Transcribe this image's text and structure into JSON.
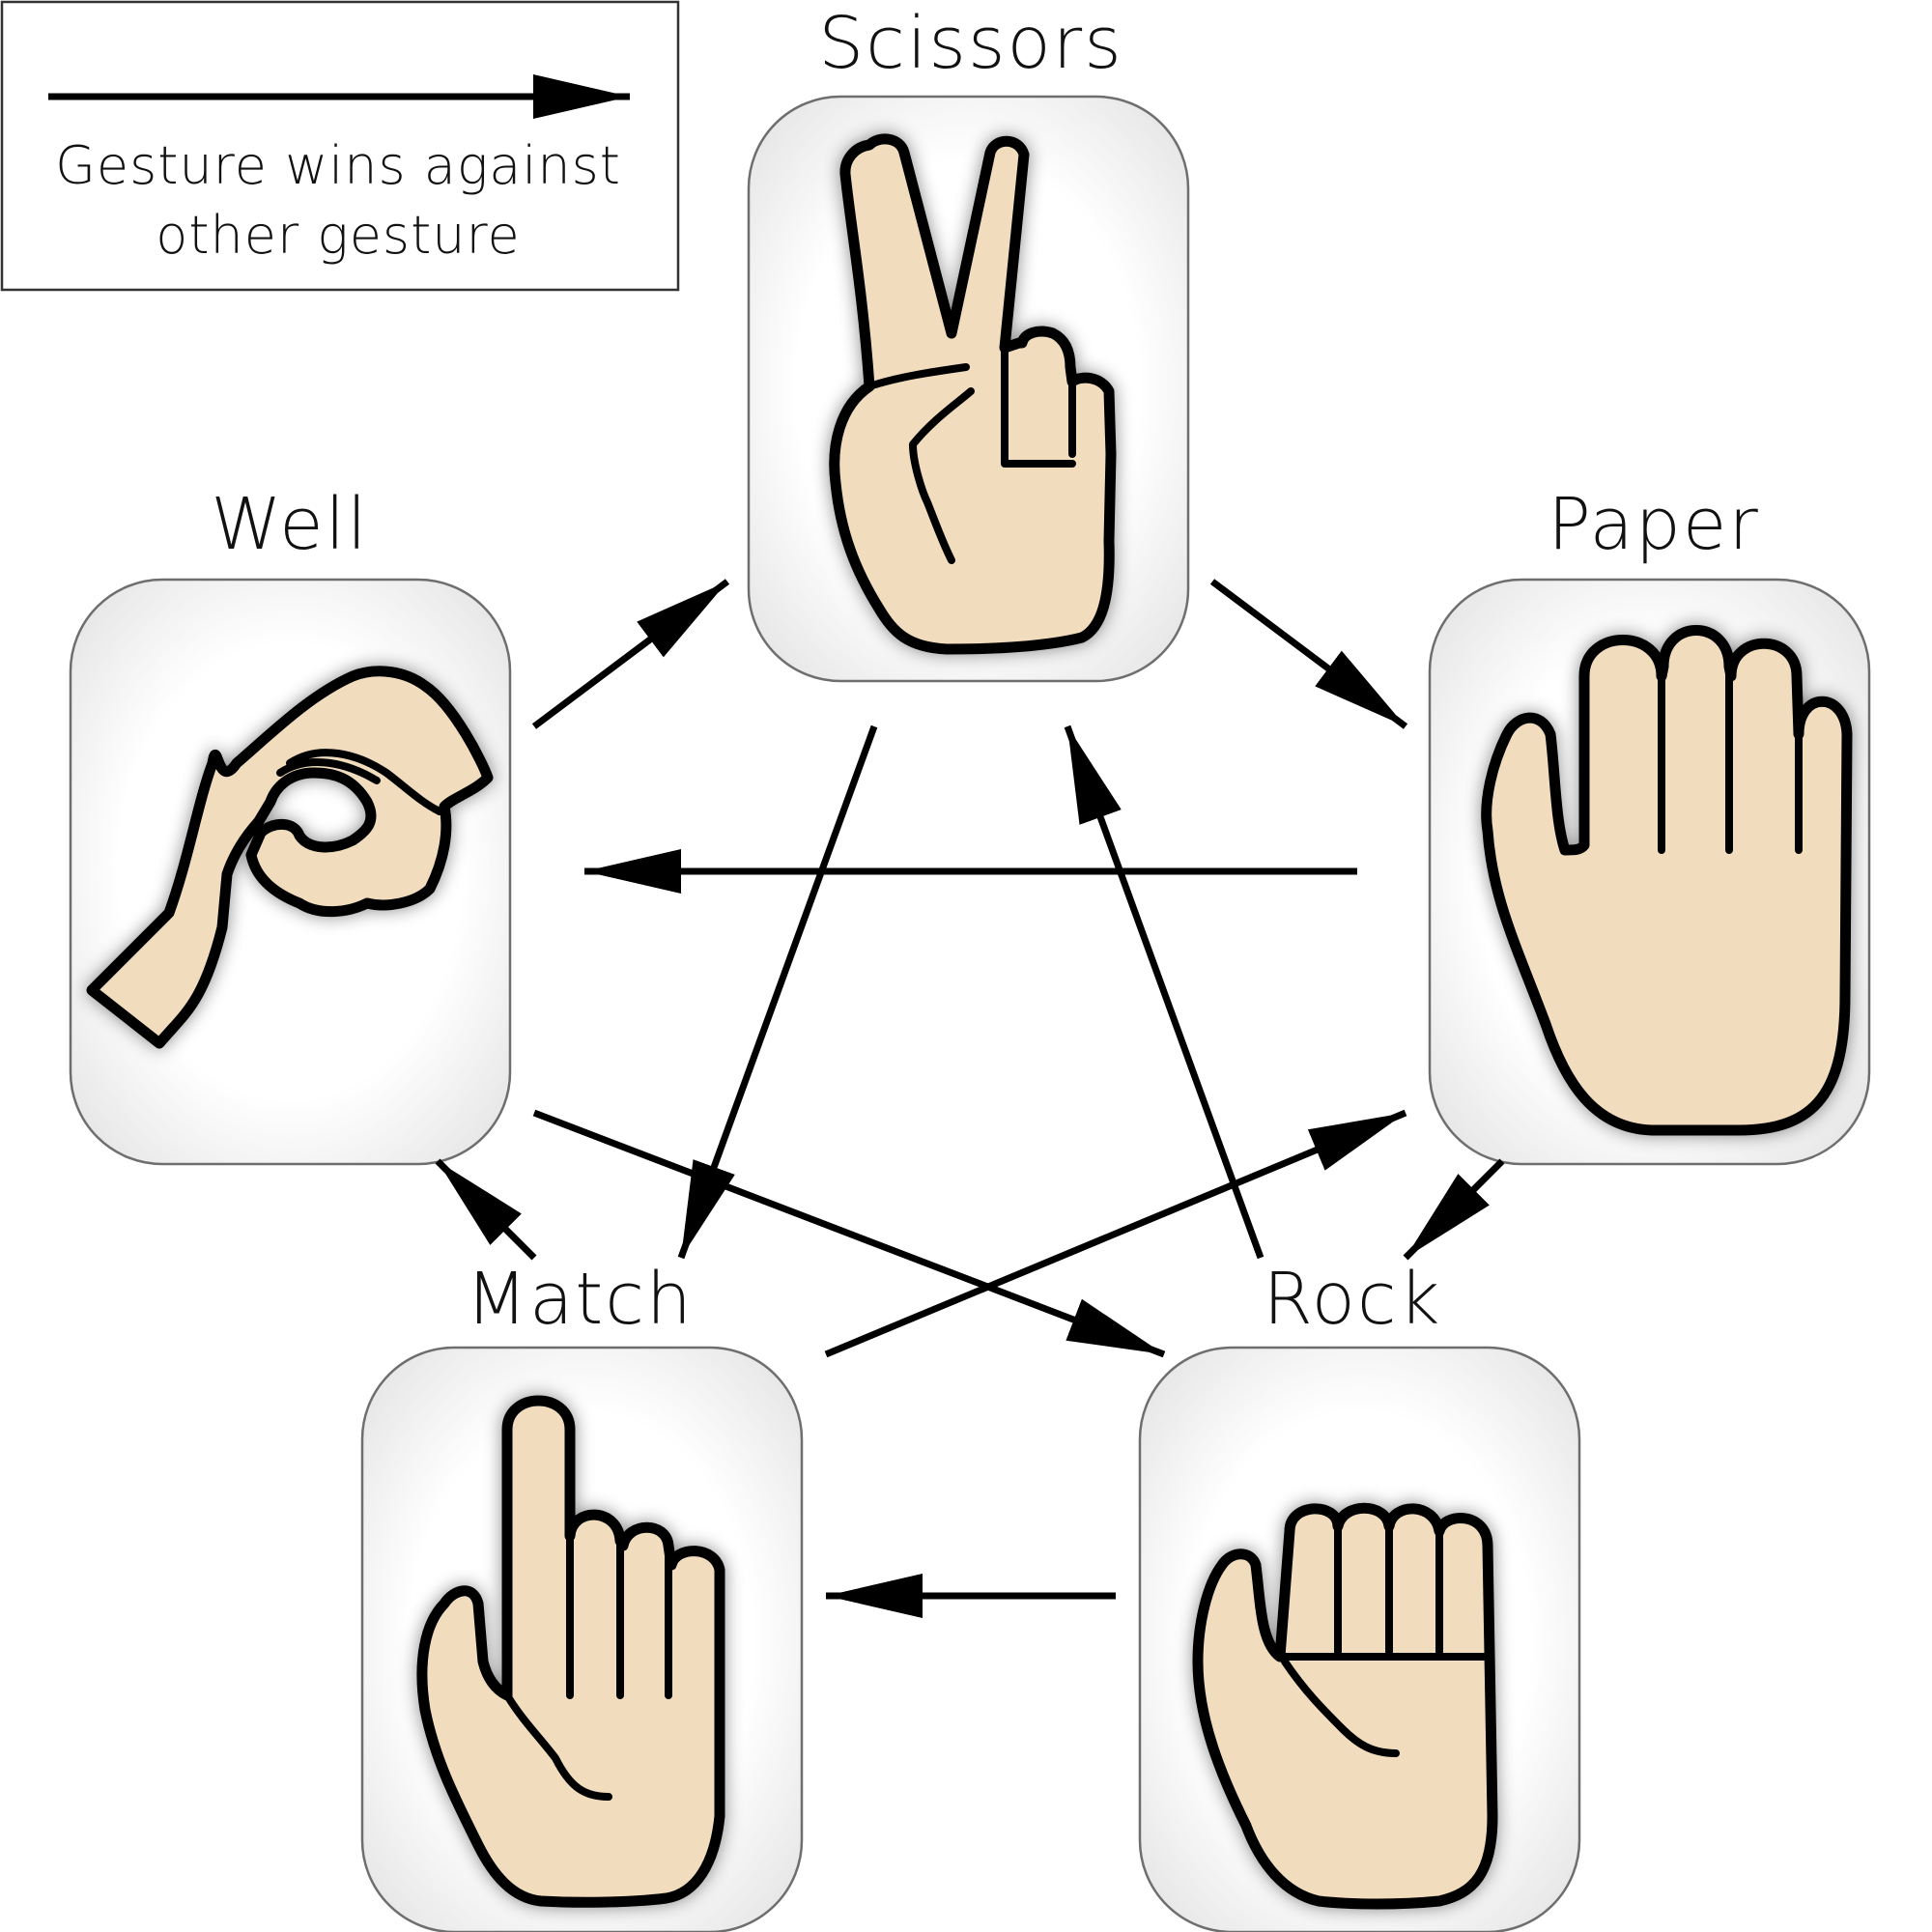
{
  "legend": {
    "text_line1": "Gesture wins against",
    "text_line2": "other gesture"
  },
  "gestures": {
    "scissors": {
      "label": "Scissors"
    },
    "paper": {
      "label": "Paper"
    },
    "rock": {
      "label": "Rock"
    },
    "match": {
      "label": "Match"
    },
    "well": {
      "label": "Well"
    }
  },
  "relations": [
    {
      "from": "Scissors",
      "to": "Paper"
    },
    {
      "from": "Scissors",
      "to": "Match"
    },
    {
      "from": "Paper",
      "to": "Well"
    },
    {
      "from": "Paper",
      "to": "Rock"
    },
    {
      "from": "Rock",
      "to": "Scissors"
    },
    {
      "from": "Rock",
      "to": "Match"
    },
    {
      "from": "Match",
      "to": "Well"
    },
    {
      "from": "Match",
      "to": "Paper"
    },
    {
      "from": "Well",
      "to": "Scissors"
    },
    {
      "from": "Well",
      "to": "Rock"
    }
  ],
  "colors": {
    "skin": "#f1dcbd",
    "outline": "#000000",
    "card_border": "#6e6e6e"
  }
}
